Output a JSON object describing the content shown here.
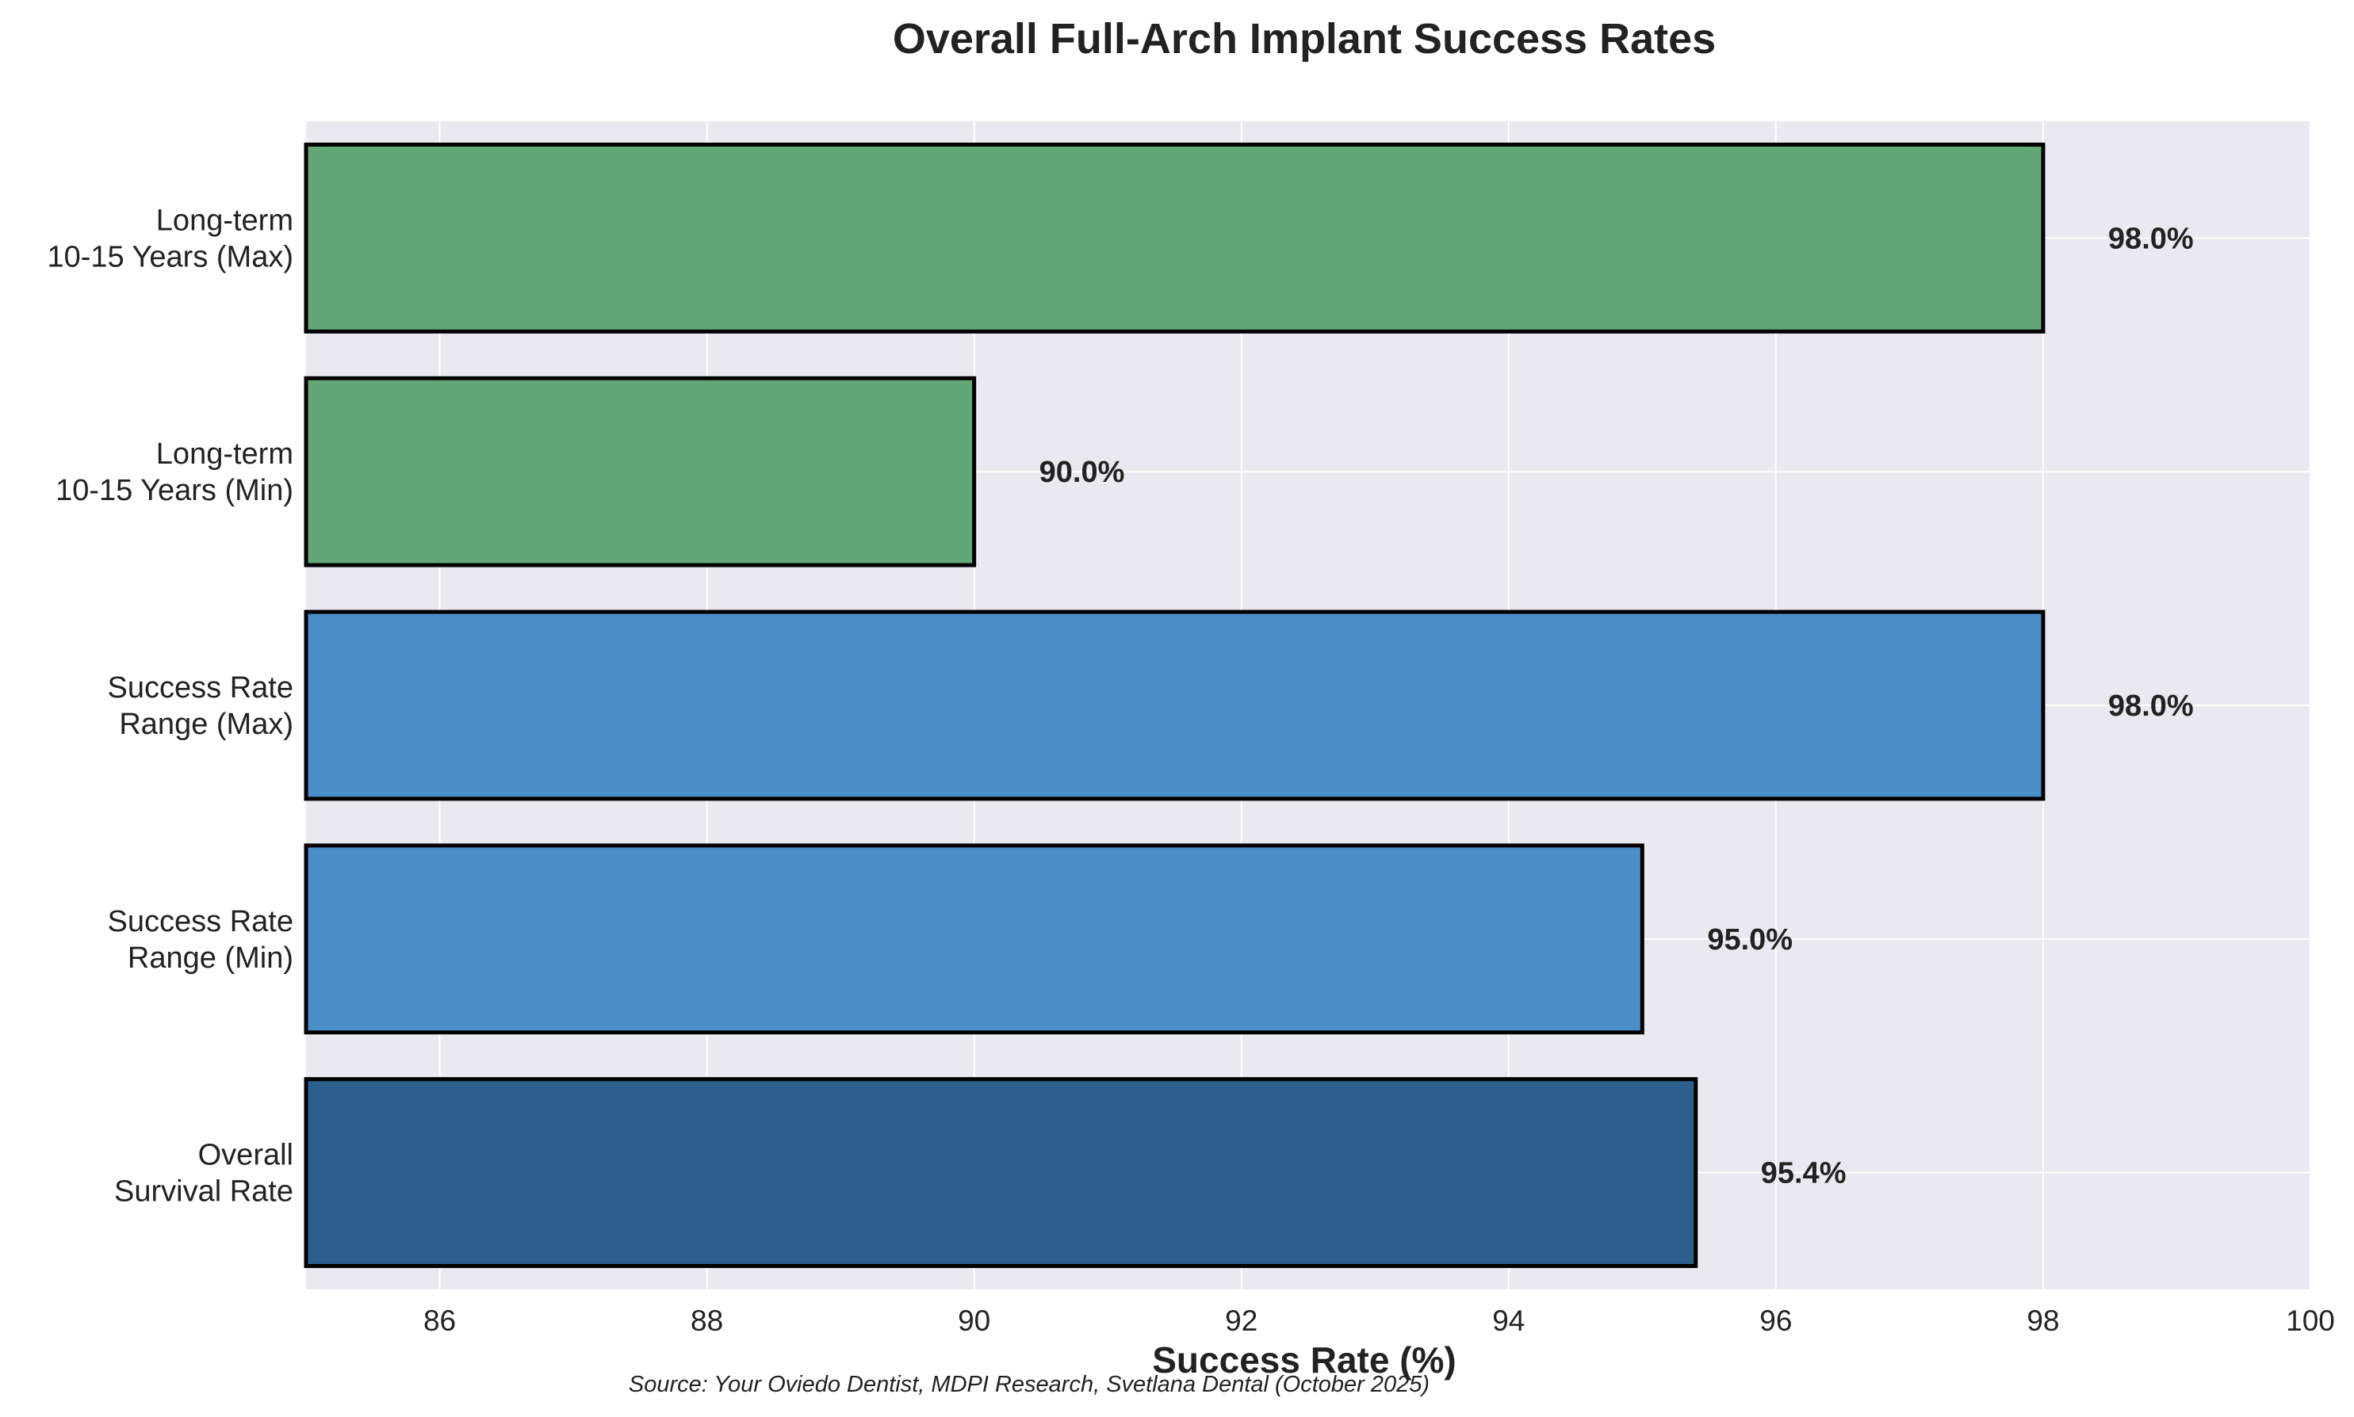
{
  "chart_data": {
    "type": "bar",
    "orientation": "horizontal",
    "title": "Overall Full-Arch Implant Success Rates",
    "xlabel": "Success Rate (%)",
    "ylabel": "",
    "xlim": [
      85,
      100
    ],
    "xticks": [
      86,
      88,
      90,
      92,
      94,
      96,
      98,
      100
    ],
    "grid": true,
    "legend": "none",
    "bars": [
      {
        "category": [
          "Overall",
          "Survival Rate"
        ],
        "value": 95.4,
        "label": "95.4%",
        "color": "#2c5f8d"
      },
      {
        "category": [
          "Success Rate",
          "Range (Min)"
        ],
        "value": 95.0,
        "label": "95.0%",
        "color": "#4a8fc9"
      },
      {
        "category": [
          "Success Rate",
          "Range (Max)"
        ],
        "value": 98.0,
        "label": "98.0%",
        "color": "#4a8fc9"
      },
      {
        "category": [
          "Long-term",
          "10-15 Years (Min)"
        ],
        "value": 90.0,
        "label": "90.0%",
        "color": "#62a777"
      },
      {
        "category": [
          "Long-term",
          "10-15 Years (Max)"
        ],
        "value": 98.0,
        "label": "98.0%",
        "color": "#62a777"
      }
    ],
    "source_note": "Source: Your Oviedo Dentist, MDPI Research, Svetlana Dental (October 2025)",
    "colors": {
      "plot_background": "#e9e9f1",
      "gridline": "#ffffff",
      "bar_edge": "#000000",
      "text": "#222222"
    }
  }
}
